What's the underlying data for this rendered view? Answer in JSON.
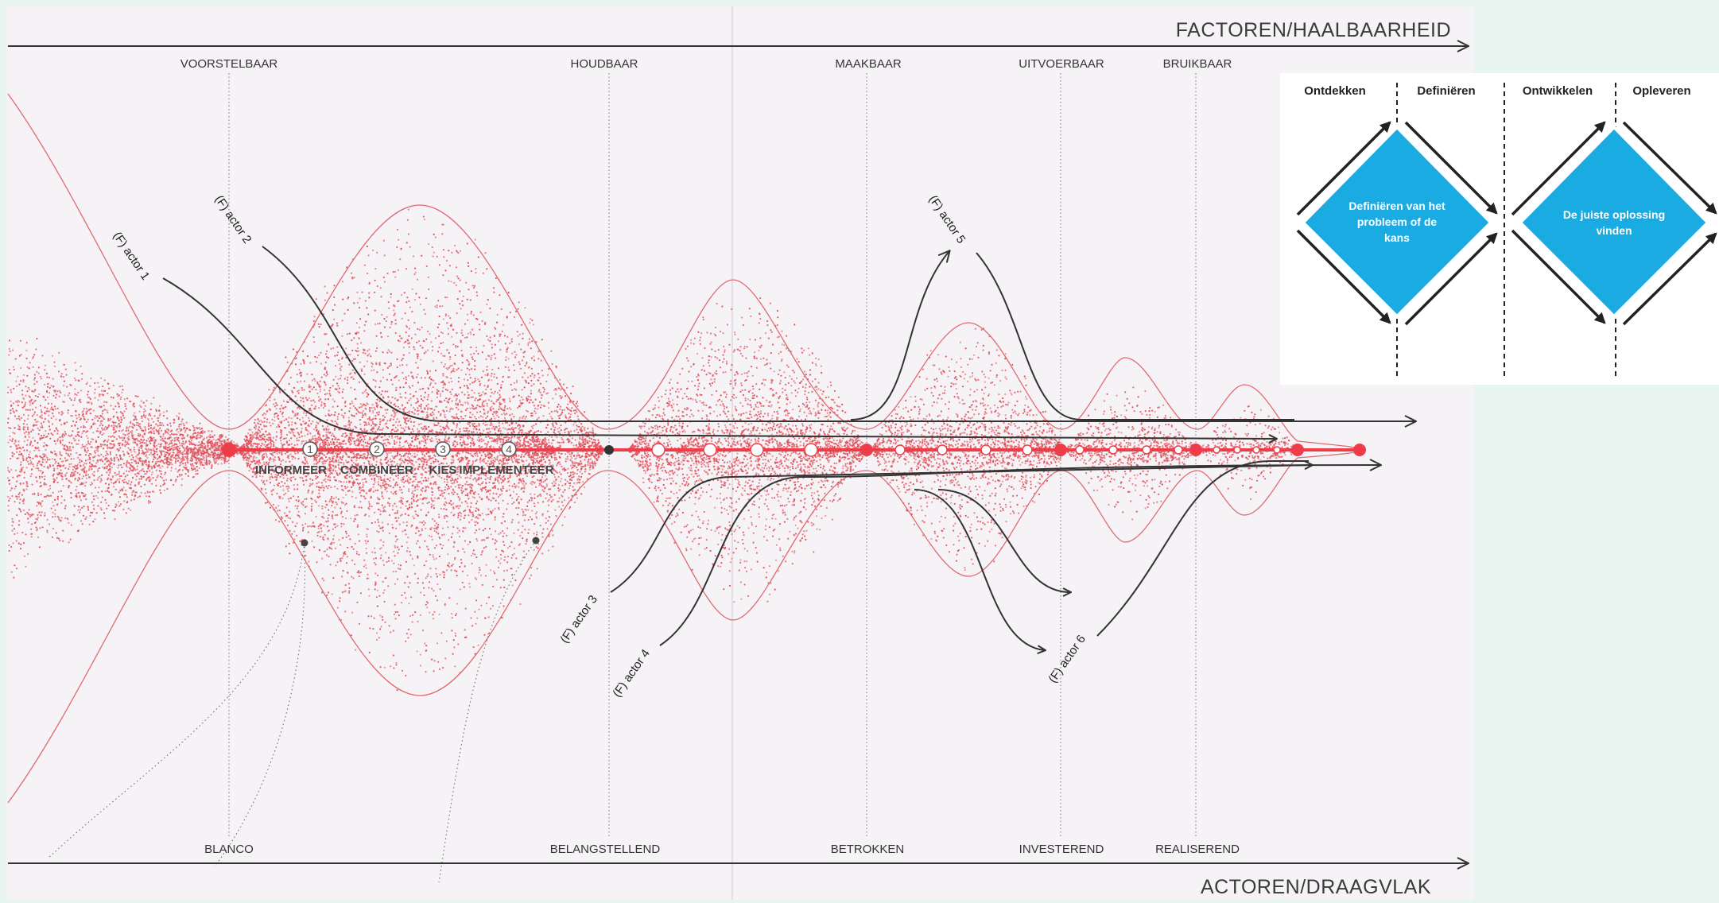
{
  "axes": {
    "top_title": "FACTOREN/HAALBAARHEID",
    "bottom_title": "ACTOREN/DRAAGVLAK"
  },
  "factor_columns": [
    "VOORSTELBAAR",
    "HOUDBAAR",
    "MAAKBAAR",
    "UITVOERBAAR",
    "BRUIKBAAR"
  ],
  "actor_columns": [
    "BLANCO",
    "BELANGSTELLEND",
    "BETROKKEN",
    "INVESTEREND",
    "REALISEREND"
  ],
  "steps": [
    {
      "num": "1",
      "label": "INFORMEER"
    },
    {
      "num": "2",
      "label": "COMBINEER"
    },
    {
      "num": "3",
      "label": "KIES"
    },
    {
      "num": "4",
      "label": "IMPLEMENTEER"
    }
  ],
  "actors": [
    "(F) actor 1",
    "(F) actor 2",
    "(F) actor 3",
    "(F) actor 4",
    "(F) actor 5",
    "(F) actor 6"
  ],
  "colors": {
    "accent": "#ee3d48",
    "stipple": "#e0505a",
    "line": "#333333",
    "diamond": "#1aabe3"
  },
  "double_diamond": {
    "phases": [
      "Ontdekken",
      "Definiëren",
      "Ontwikkelen",
      "Opleveren"
    ],
    "diamond_1": [
      "Definiëren van het",
      "probleem of de",
      "kans"
    ],
    "diamond_2": [
      "De juiste oplossing",
      "vinden"
    ]
  }
}
